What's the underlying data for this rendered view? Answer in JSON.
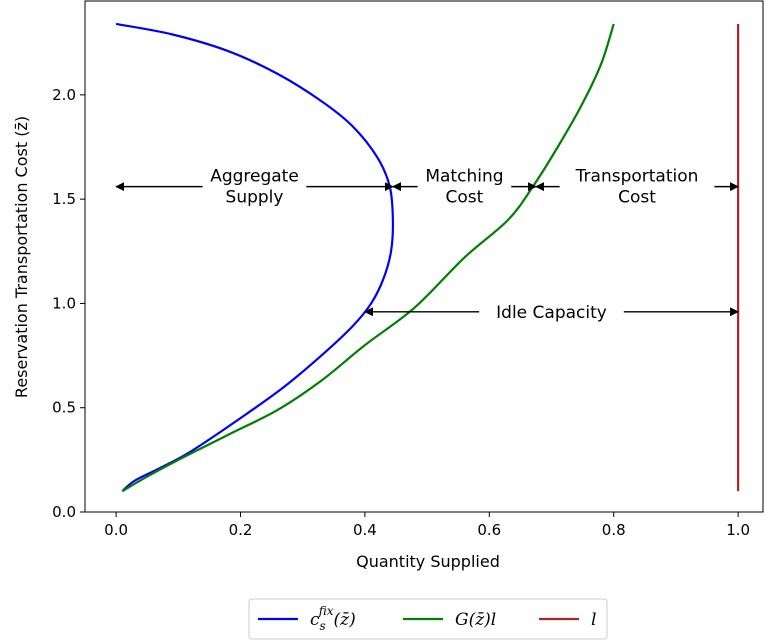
{
  "chart_data": {
    "type": "line",
    "title": "",
    "xlabel": "Quantity Supplied",
    "ylabel": "Reservation Transportation Cost (z̄)",
    "xlim": [
      -0.05,
      1.04
    ],
    "ylim": [
      0.0,
      2.45
    ],
    "x_ticks": [
      0.0,
      0.2,
      0.4,
      0.6,
      0.8,
      1.0
    ],
    "x_tick_labels": [
      "0.0",
      "0.2",
      "0.4",
      "0.6",
      "0.8",
      "1.0"
    ],
    "y_ticks": [
      0.0,
      0.5,
      1.0,
      1.5,
      2.0
    ],
    "y_tick_labels": [
      "0.0",
      "0.5",
      "1.0",
      "1.5",
      "2.0"
    ],
    "grid": false,
    "legend_position": "bottom-center-outside",
    "series": [
      {
        "name": "c_s^{fix}(z̄)",
        "color": "#0000ff",
        "points": [
          [
            0.01,
            0.1
          ],
          [
            0.03,
            0.15
          ],
          [
            0.07,
            0.21
          ],
          [
            0.12,
            0.29
          ],
          [
            0.2,
            0.45
          ],
          [
            0.27,
            0.6
          ],
          [
            0.33,
            0.75
          ],
          [
            0.38,
            0.89
          ],
          [
            0.41,
            1.0
          ],
          [
            0.43,
            1.12
          ],
          [
            0.442,
            1.25
          ],
          [
            0.445,
            1.4
          ],
          [
            0.44,
            1.56
          ],
          [
            0.42,
            1.7
          ],
          [
            0.38,
            1.85
          ],
          [
            0.33,
            1.97
          ],
          [
            0.26,
            2.1
          ],
          [
            0.18,
            2.21
          ],
          [
            0.09,
            2.29
          ],
          [
            0.0,
            2.34
          ]
        ]
      },
      {
        "name": "G(z̄)l",
        "color": "#008000",
        "points": [
          [
            0.01,
            0.1
          ],
          [
            0.05,
            0.17
          ],
          [
            0.1,
            0.25
          ],
          [
            0.18,
            0.37
          ],
          [
            0.26,
            0.49
          ],
          [
            0.33,
            0.63
          ],
          [
            0.4,
            0.8
          ],
          [
            0.48,
            0.98
          ],
          [
            0.56,
            1.22
          ],
          [
            0.63,
            1.4
          ],
          [
            0.67,
            1.56
          ],
          [
            0.71,
            1.75
          ],
          [
            0.75,
            1.96
          ],
          [
            0.78,
            2.15
          ],
          [
            0.8,
            2.34
          ]
        ]
      },
      {
        "name": "l",
        "color": "#b22222",
        "points": [
          [
            1.0,
            0.1
          ],
          [
            1.0,
            2.34
          ]
        ]
      }
    ],
    "annotations": [
      {
        "id": "aggregate-supply",
        "text_lines": [
          "Aggregate",
          "Supply"
        ],
        "x_from": 0.0,
        "x_to": 0.445,
        "y": 1.56
      },
      {
        "id": "matching-cost",
        "text_lines": [
          "Matching",
          "Cost"
        ],
        "x_from": 0.445,
        "x_to": 0.675,
        "y": 1.56
      },
      {
        "id": "transportation-cost",
        "text_lines": [
          "Transportation",
          "Cost"
        ],
        "x_from": 0.675,
        "x_to": 1.0,
        "y": 1.56
      },
      {
        "id": "idle-capacity",
        "text_lines": [
          "Idle Capacity"
        ],
        "x_from": 0.4,
        "x_to": 1.0,
        "y": 0.96
      }
    ]
  }
}
